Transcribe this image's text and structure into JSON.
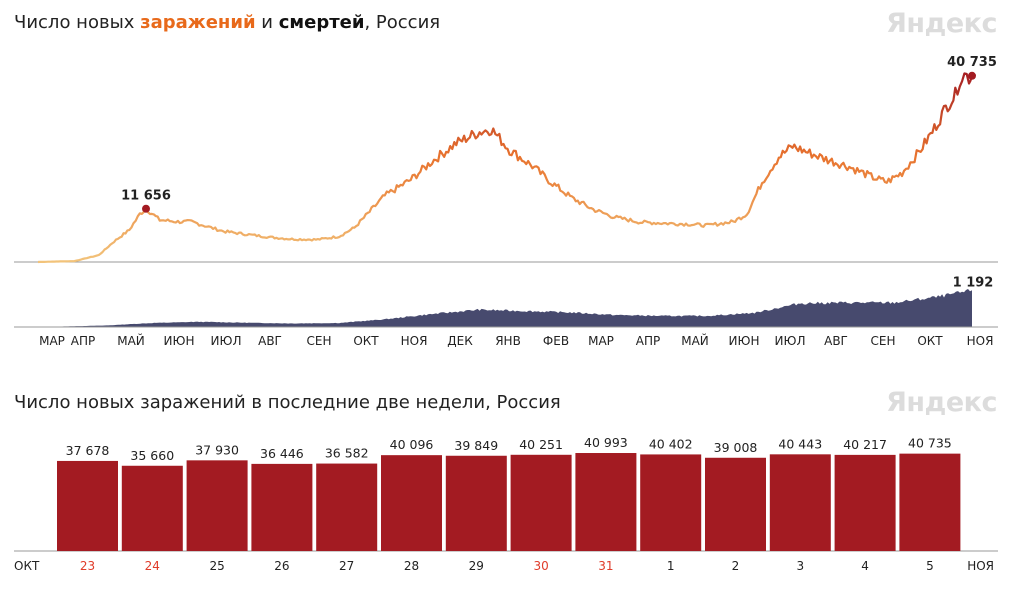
{
  "top": {
    "title_part1": "Число новых ",
    "title_infections": "заражений",
    "title_part2": " и ",
    "title_deaths": "смертей",
    "title_part3": ", Россия",
    "logo": "Яндекс"
  },
  "bottom": {
    "title": "Число новых заражений в последние две недели, Россия",
    "logo": "Яндекс"
  },
  "colors": {
    "curve_low": "#f2c37a",
    "curve_mid": "#e8732e",
    "curve_high": "#a31b22",
    "deaths_area": "#474a6e",
    "bars": "#a31b22",
    "weekend": "#e03c2a"
  },
  "chart_data": [
    {
      "type": "line",
      "series": [
        {
          "points": [
            [
              "2020-03-01",
              0
            ],
            [
              "2020-03-25",
              200
            ],
            [
              "2020-04-10",
              1500
            ],
            [
              "2020-04-20",
              4500
            ],
            [
              "2020-04-30",
              7000
            ],
            [
              "2020-05-07",
              10500
            ],
            [
              "2020-05-11",
              11656
            ],
            [
              "2020-05-20",
              9200
            ],
            [
              "2020-06-01",
              8800
            ],
            [
              "2020-06-10",
              8800
            ],
            [
              "2020-06-20",
              7800
            ],
            [
              "2020-07-01",
              6700
            ],
            [
              "2020-07-15",
              6100
            ],
            [
              "2020-08-01",
              5400
            ],
            [
              "2020-08-15",
              5000
            ],
            [
              "2020-09-01",
              4900
            ],
            [
              "2020-09-15",
              5600
            ],
            [
              "2020-09-25",
              7500
            ],
            [
              "2020-10-05",
              11000
            ],
            [
              "2020-10-15",
              14500
            ],
            [
              "2020-11-01",
              18000
            ],
            [
              "2020-11-15",
              22000
            ],
            [
              "2020-12-01",
              26000
            ],
            [
              "2020-12-15",
              28300
            ],
            [
              "2020-12-24",
              29100
            ],
            [
              "2021-01-05",
              24500
            ],
            [
              "2021-01-20",
              21000
            ],
            [
              "2021-02-01",
              17500
            ],
            [
              "2021-02-15",
              14000
            ],
            [
              "2021-03-01",
              11500
            ],
            [
              "2021-03-15",
              9800
            ],
            [
              "2021-04-01",
              8700
            ],
            [
              "2021-04-15",
              8500
            ],
            [
              "2021-05-01",
              8300
            ],
            [
              "2021-05-15",
              8000
            ],
            [
              "2021-06-01",
              8800
            ],
            [
              "2021-06-10",
              10500
            ],
            [
              "2021-06-20",
              17500
            ],
            [
              "2021-07-01",
              23000
            ],
            [
              "2021-07-10",
              25300
            ],
            [
              "2021-07-20",
              24000
            ],
            [
              "2021-08-01",
              22500
            ],
            [
              "2021-08-15",
              21000
            ],
            [
              "2021-09-01",
              18500
            ],
            [
              "2021-09-10",
              17500
            ],
            [
              "2021-09-20",
              19500
            ],
            [
              "2021-10-01",
              24000
            ],
            [
              "2021-10-10",
              28500
            ],
            [
              "2021-10-20",
              34500
            ],
            [
              "2021-10-25",
              36500
            ],
            [
              "2021-10-28",
              40096
            ],
            [
              "2021-10-31",
              40993
            ],
            [
              "2021-11-03",
              40443
            ],
            [
              "2021-11-05",
              40735
            ]
          ]
        },
        {
          "points": [
            [
              "2020-03-01",
              0
            ],
            [
              "2020-04-15",
              50
            ],
            [
              "2020-05-15",
              130
            ],
            [
              "2020-06-15",
              170
            ],
            [
              "2020-07-15",
              140
            ],
            [
              "2020-08-15",
              115
            ],
            [
              "2020-09-15",
              130
            ],
            [
              "2020-10-15",
              250
            ],
            [
              "2020-11-15",
              420
            ],
            [
              "2020-12-15",
              560
            ],
            [
              "2021-01-15",
              520
            ],
            [
              "2021-02-15",
              470
            ],
            [
              "2021-03-15",
              390
            ],
            [
              "2021-04-15",
              360
            ],
            [
              "2021-05-15",
              360
            ],
            [
              "2021-06-15",
              460
            ],
            [
              "2021-07-15",
              770
            ],
            [
              "2021-08-15",
              790
            ],
            [
              "2021-09-15",
              790
            ],
            [
              "2021-10-15",
              990
            ],
            [
              "2021-11-05",
              1192
            ]
          ]
        }
      ],
      "x_ticks": [
        "МАР",
        "АПР",
        "МАЙ",
        "ИЮН",
        "ИЮЛ",
        "АВГ",
        "СЕН",
        "ОКТ",
        "НОЯ",
        "ДЕК",
        "ЯНВ",
        "ФЕВ",
        "МАР",
        "АПР",
        "МАЙ",
        "ИЮН",
        "ИЮЛ",
        "АВГ",
        "СЕН",
        "ОКТ",
        "НОЯ"
      ],
      "annotations": [
        {
          "date": "2020-05-11",
          "value": "11 656"
        },
        {
          "date": "2021-11-05",
          "value": "40 735"
        },
        {
          "date": "2021-11-05",
          "value": "1 192"
        }
      ],
      "ylim_infections": [
        0,
        42000
      ],
      "ylim_deaths": [
        0,
        1300
      ]
    },
    {
      "type": "bar",
      "categories": [
        "23",
        "24",
        "25",
        "26",
        "27",
        "28",
        "29",
        "30",
        "31",
        "1",
        "2",
        "3",
        "4",
        "5"
      ],
      "values": [
        37678,
        35660,
        37930,
        36446,
        36582,
        40096,
        39849,
        40251,
        40993,
        40402,
        39008,
        40443,
        40217,
        40735
      ],
      "value_labels": [
        "37 678",
        "35 660",
        "37 930",
        "36 446",
        "36 582",
        "40 096",
        "39 849",
        "40 251",
        "40 993",
        "40 402",
        "39 008",
        "40 443",
        "40 217",
        "40 735"
      ],
      "weekend": [
        true,
        true,
        false,
        false,
        false,
        false,
        false,
        true,
        true,
        false,
        false,
        false,
        false,
        false
      ],
      "month_left": "ОКТ",
      "month_right": "НОЯ",
      "ylim": [
        0,
        41000
      ]
    }
  ]
}
